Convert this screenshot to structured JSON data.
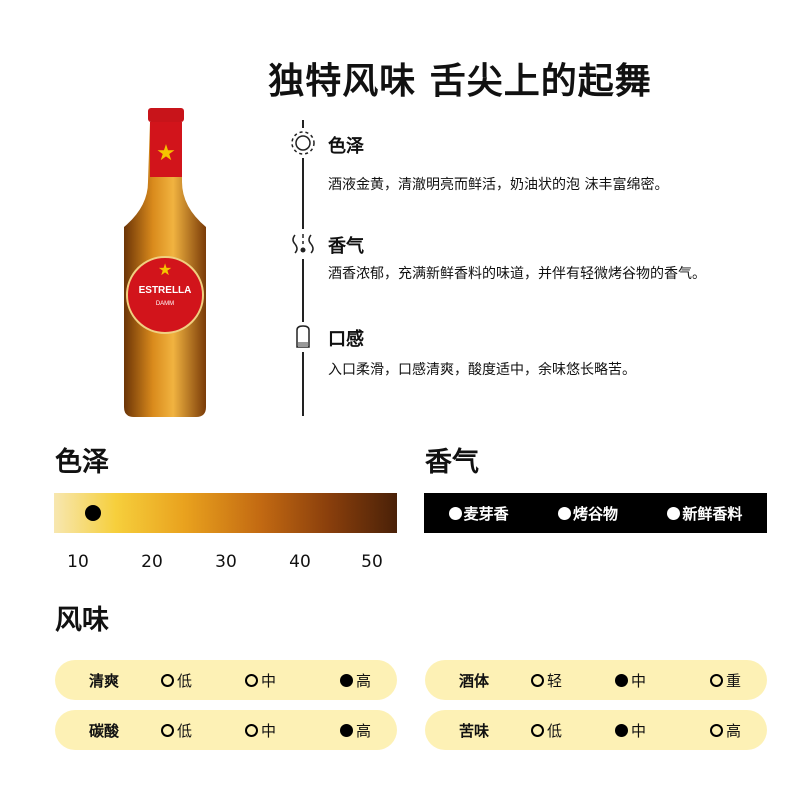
{
  "title": "独特风味 舌尖上的起舞",
  "colors": {
    "pill": "#fdf1b5",
    "aroma_bar": "#000000"
  },
  "features": [
    {
      "icon": "sun-icon",
      "heading": "色泽",
      "text": "酒液金黄，清澈明亮而鲜活，奶油状的泡 沫丰富绵密。"
    },
    {
      "icon": "aroma-icon",
      "heading": "香气",
      "text": "酒香浓郁，充满新鲜香料的味道，并伴有轻微烤谷物的香气。"
    },
    {
      "icon": "beer-glass-icon",
      "heading": "口感",
      "text": "入口柔滑，口感清爽，酸度适中，余味悠长略苦。"
    }
  ],
  "color_section": {
    "label": "色泽",
    "scale": [
      "10",
      "20",
      "30",
      "40",
      "50"
    ],
    "value": 12
  },
  "aroma_section": {
    "label": "香气",
    "items": [
      "麦芽香",
      "烤谷物",
      "新鲜香料"
    ]
  },
  "flavor_section": {
    "label": "风味",
    "rows": [
      {
        "label": "清爽",
        "options": [
          "低",
          "中",
          "高"
        ],
        "selected": 2
      },
      {
        "label": "碳酸",
        "options": [
          "低",
          "中",
          "高"
        ],
        "selected": 2
      },
      {
        "label": "酒体",
        "options": [
          "轻",
          "中",
          "重"
        ],
        "selected": 1
      },
      {
        "label": "苦味",
        "options": [
          "低",
          "中",
          "高"
        ],
        "selected": 1
      }
    ]
  },
  "bottle_label": "ESTRELLA DAMM"
}
